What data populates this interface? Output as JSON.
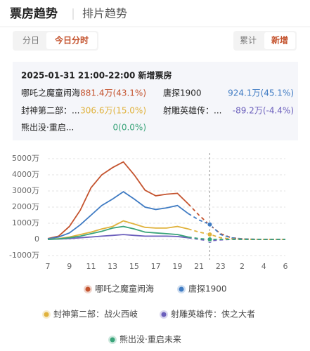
{
  "header": {
    "tabs": [
      "票房趋势",
      "排片趋势"
    ]
  },
  "controls": {
    "left": [
      "分日",
      "今日分时"
    ],
    "right": [
      "累计",
      "新增"
    ]
  },
  "info": {
    "title": "2025-01-31 21:00-22:00 新增票房",
    "items": [
      {
        "name": "哪吒之魔童闹海",
        "value": "881.4万(43.1%)"
      },
      {
        "name": "唐探1900",
        "value": "924.1万(45.1%)"
      },
      {
        "name": "封神第二部：...",
        "value": "306.6万(15.0%)"
      },
      {
        "name": "射雕英雄传：...",
        "value": "-89.2万(-4.4%)"
      },
      {
        "name": "熊出没·重启...",
        "value": "0(0.0%)"
      }
    ]
  },
  "chart_data": {
    "type": "line",
    "categories": [
      "7",
      null,
      "9",
      null,
      "11",
      null,
      "13",
      null,
      "15",
      null,
      "17",
      null,
      "19",
      null,
      "21",
      null,
      "23",
      null,
      "2",
      null,
      "4",
      null,
      "6"
    ],
    "series": [
      {
        "name": "哪吒之魔童闹海",
        "color": "#c4532e",
        "values": [
          50,
          200,
          800,
          1800,
          3200,
          4000,
          4450,
          4800,
          4000,
          3050,
          2700,
          2800,
          2850,
          2200,
          1500,
          881.4,
          350,
          100,
          30,
          10,
          0,
          0,
          0
        ]
      },
      {
        "name": "唐探1900",
        "color": "#3f7bc3",
        "values": [
          30,
          150,
          400,
          900,
          1500,
          2100,
          2500,
          2950,
          2500,
          2000,
          1850,
          1950,
          2100,
          1600,
          1200,
          924.1,
          300,
          100,
          30,
          10,
          0,
          0,
          0
        ]
      },
      {
        "name": "封神第二部：战火西岐",
        "color": "#e0b23c",
        "values": [
          0,
          50,
          150,
          300,
          450,
          650,
          800,
          1150,
          950,
          750,
          700,
          700,
          800,
          650,
          450,
          306.6,
          100,
          30,
          10,
          0,
          0,
          0,
          0
        ]
      },
      {
        "name": "射雕英雄传：侠之大者",
        "color": "#6b5fbc",
        "values": [
          0,
          20,
          50,
          100,
          150,
          200,
          250,
          300,
          250,
          200,
          200,
          200,
          180,
          100,
          0,
          -89.2,
          -30,
          0,
          0,
          0,
          0,
          0,
          0
        ]
      },
      {
        "name": "熊出没·重启未来",
        "color": "#3aa47a",
        "values": [
          0,
          30,
          100,
          200,
          350,
          500,
          700,
          800,
          650,
          450,
          400,
          350,
          300,
          150,
          50,
          0,
          0,
          0,
          0,
          0,
          0,
          0,
          0
        ]
      }
    ],
    "ylim": [
      -1000,
      5000
    ],
    "yticks": [
      {
        "value": 5000,
        "label": "5000万"
      },
      {
        "value": 4000,
        "label": "4000万"
      },
      {
        "value": 3000,
        "label": "3000万"
      },
      {
        "value": 2000,
        "label": "2000万"
      },
      {
        "value": 1000,
        "label": "1000万"
      },
      0,
      {
        "value": -1000,
        "label": "-1000万"
      }
    ],
    "grid": true
  }
}
